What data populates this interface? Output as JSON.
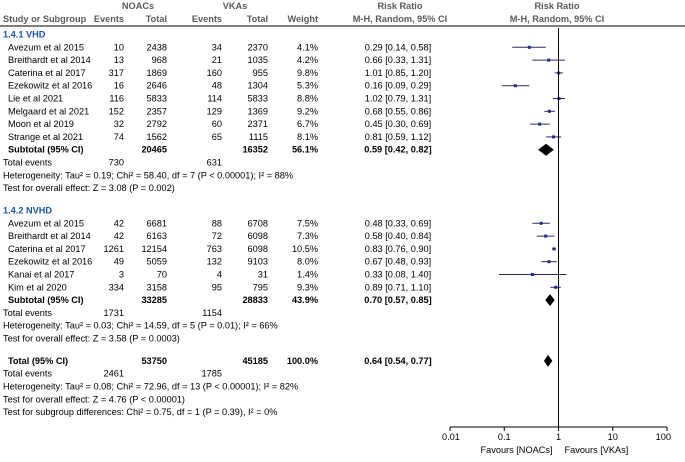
{
  "header": {
    "study": "Study or Subgroup",
    "noacs": "NOACs",
    "vkas": "VKAs",
    "events": "Events",
    "total": "Total",
    "weight": "Weight",
    "rr_title": "Risk Ratio",
    "rr_method": "M-H, Random, 95% CI",
    "rr_plot_title": "Risk Ratio",
    "rr_plot_method": "M-H, Random, 95% CI"
  },
  "chart_data": {
    "type": "forest",
    "xscale": "log",
    "xlim": [
      0.01,
      100
    ],
    "xticks": [
      "0.01",
      "0.1",
      "1",
      "10",
      "100"
    ],
    "xlabel_left": "Favours [NOACs]",
    "xlabel_right": "Favours [VKAs]",
    "subgroups": [
      {
        "title": "1.4.1 VHD",
        "studies": [
          {
            "name": "Avezum et al 2015",
            "e1": "10",
            "t1": "2438",
            "e2": "34",
            "t2": "2370",
            "w": "4.1%",
            "ci_text": "0.29 [0.14, 0.58]",
            "rr": 0.29,
            "lo": 0.14,
            "hi": 0.58
          },
          {
            "name": "Breithardt et al 2014",
            "e1": "13",
            "t1": "968",
            "e2": "21",
            "t2": "1035",
            "w": "4.2%",
            "ci_text": "0.66 [0.33, 1.31]",
            "rr": 0.66,
            "lo": 0.33,
            "hi": 1.31
          },
          {
            "name": "Caterina et al 2017",
            "e1": "317",
            "t1": "1869",
            "e2": "160",
            "t2": "955",
            "w": "9.8%",
            "ci_text": "1.01 [0.85, 1.20]",
            "rr": 1.01,
            "lo": 0.85,
            "hi": 1.2
          },
          {
            "name": "Ezekowitz et al 2016",
            "e1": "16",
            "t1": "2646",
            "e2": "48",
            "t2": "1304",
            "w": "5.3%",
            "ci_text": "0.16 [0.09, 0.29]",
            "rr": 0.16,
            "lo": 0.09,
            "hi": 0.29
          },
          {
            "name": "Lie et al 2021",
            "e1": "116",
            "t1": "5833",
            "e2": "114",
            "t2": "5833",
            "w": "8.8%",
            "ci_text": "1.02 [0.79, 1.31]",
            "rr": 1.02,
            "lo": 0.79,
            "hi": 1.31
          },
          {
            "name": "Melgaard et al 2021",
            "e1": "152",
            "t1": "2357",
            "e2": "129",
            "t2": "1369",
            "w": "9.2%",
            "ci_text": "0.68 [0.55, 0.86]",
            "rr": 0.68,
            "lo": 0.55,
            "hi": 0.86
          },
          {
            "name": "Moon et al 2019",
            "e1": "32",
            "t1": "2792",
            "e2": "60",
            "t2": "2371",
            "w": "6.7%",
            "ci_text": "0.45 [0.30, 0.69]",
            "rr": 0.45,
            "lo": 0.3,
            "hi": 0.69
          },
          {
            "name": "Strange et al 2021",
            "e1": "74",
            "t1": "1562",
            "e2": "65",
            "t2": "1115",
            "w": "8.1%",
            "ci_text": "0.81 [0.59, 1.12]",
            "rr": 0.81,
            "lo": 0.59,
            "hi": 1.12
          }
        ],
        "subtotal": {
          "label": "Subtotal (95% CI)",
          "t1": "20465",
          "t2": "16352",
          "w": "56.1%",
          "ci_text": "0.59 [0.42, 0.82]",
          "rr": 0.59,
          "lo": 0.42,
          "hi": 0.82
        },
        "total_events": {
          "label": "Total events",
          "e1": "730",
          "e2": "631"
        },
        "heterogeneity": "Heterogeneity: Tau² = 0.19; Chi² = 58.40, df = 7 (P < 0.00001); I² = 88%",
        "overall": "Test for overall effect: Z = 3.08 (P = 0.002)"
      },
      {
        "title": "1.4.2 NVHD",
        "studies": [
          {
            "name": "Avezum et al 2015",
            "e1": "42",
            "t1": "6681",
            "e2": "88",
            "t2": "6708",
            "w": "7.5%",
            "ci_text": "0.48 [0.33, 0.69]",
            "rr": 0.48,
            "lo": 0.33,
            "hi": 0.69
          },
          {
            "name": "Breithardt et al 2014",
            "e1": "42",
            "t1": "6163",
            "e2": "72",
            "t2": "6098",
            "w": "7.3%",
            "ci_text": "0.58 [0.40, 0.84]",
            "rr": 0.58,
            "lo": 0.4,
            "hi": 0.84
          },
          {
            "name": "Caterina et al 2017",
            "e1": "1261",
            "t1": "12154",
            "e2": "763",
            "t2": "6098",
            "w": "10.5%",
            "ci_text": "0.83 [0.76, 0.90]",
            "rr": 0.83,
            "lo": 0.76,
            "hi": 0.9
          },
          {
            "name": "Ezekowitz et al 2016",
            "e1": "49",
            "t1": "5059",
            "e2": "132",
            "t2": "9103",
            "w": "8.0%",
            "ci_text": "0.67 [0.48, 0.93]",
            "rr": 0.67,
            "lo": 0.48,
            "hi": 0.93
          },
          {
            "name": "Kanai et al 2017",
            "e1": "3",
            "t1": "70",
            "e2": "4",
            "t2": "31",
            "w": "1.4%",
            "ci_text": "0.33 [0.08, 1.40]",
            "rr": 0.33,
            "lo": 0.08,
            "hi": 1.4
          },
          {
            "name": "Kim et al 2020",
            "e1": "334",
            "t1": "3158",
            "e2": "95",
            "t2": "795",
            "w": "9.3%",
            "ci_text": "0.89 [0.71, 1.10]",
            "rr": 0.89,
            "lo": 0.71,
            "hi": 1.1
          }
        ],
        "subtotal": {
          "label": "Subtotal (95% CI)",
          "t1": "33285",
          "t2": "28833",
          "w": "43.9%",
          "ci_text": "0.70 [0.57, 0.85]",
          "rr": 0.7,
          "lo": 0.57,
          "hi": 0.85
        },
        "total_events": {
          "label": "Total events",
          "e1": "1731",
          "e2": "1154"
        },
        "heterogeneity": "Heterogeneity: Tau² = 0.03; Chi² = 14.59, df = 5 (P = 0.01); I² = 66%",
        "overall": "Test for overall effect: Z = 3.58 (P = 0.0003)"
      }
    ],
    "total": {
      "label": "Total (95% CI)",
      "t1": "53750",
      "t2": "45185",
      "w": "100.0%",
      "ci_text": "0.64 [0.54, 0.77]",
      "rr": 0.64,
      "lo": 0.54,
      "hi": 0.77
    },
    "total_events": {
      "label": "Total events",
      "e1": "2461",
      "e2": "1785"
    },
    "heterogeneity": "Heterogeneity: Tau² = 0.08; Chi² = 72.96, df = 13 (P < 0.00001); I² = 82%",
    "overall": "Test for overall effect: Z = 4.76 (P < 0.00001)",
    "subgroup_diff": "Test for subgroup differences: Chi² = 0.75, df = 1 (P = 0.39), I² = 0%"
  },
  "colors": {
    "marker": "#1f2b8f",
    "section_title": "#1a55a8",
    "header": "#5b5b5b"
  }
}
